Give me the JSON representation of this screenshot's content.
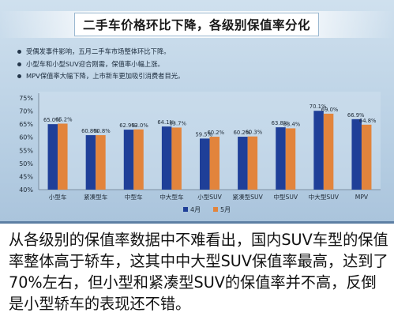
{
  "title": "二手车价格环比下降，各级别保值率分化",
  "bullets": [
    "受偶发事件影响，五月二手车市场整体环比下降。",
    "小型车和小型SUV迎合刚需，保值率小幅上涨。",
    "MPV保值率大幅下降，上市新车更加吸引消费者目光。"
  ],
  "caption": "从各级别的保值率数据中不难看出，国内SUV车型的保值率整体高于轿车，这其中中大型SUV保值率最高，达到了70%左右，但小型和紧凑型SUV的保值率并不高，反倒是小型轿车的表现还不错。",
  "colors": {
    "april": "#1f3f98",
    "may": "#e2843c"
  },
  "chart_data": {
    "type": "bar",
    "categories": [
      "小型车",
      "紧凑型车",
      "中型车",
      "中大型车",
      "小型SUV",
      "紧凑型SUV",
      "中型SUV",
      "中大型SUV",
      "MPV"
    ],
    "series": [
      {
        "name": "4月",
        "values": [
          65.0,
          60.8,
          62.9,
          64.1,
          59.5,
          60.2,
          63.8,
          70.1,
          66.9
        ],
        "labels": [
          "65.0%",
          "60.8%",
          "62.9%",
          "64.1%",
          "59.5%",
          "60.2%",
          "63.8%",
          "70.1%",
          "66.9%"
        ]
      },
      {
        "name": "5月",
        "values": [
          65.2,
          60.8,
          63.0,
          63.7,
          60.2,
          60.3,
          63.4,
          69.0,
          64.8
        ],
        "labels": [
          "65.2%",
          "60.8%",
          "63.0%",
          "63.7%",
          "60.2%",
          "60.3%",
          "63.4%",
          "69.0%",
          "64.8%"
        ]
      }
    ],
    "ylim": [
      40,
      75
    ],
    "yticks": [
      40,
      45,
      50,
      55,
      60,
      65,
      70,
      75
    ],
    "ytick_labels": [
      "40%",
      "45%",
      "50%",
      "55%",
      "60%",
      "65%",
      "70%",
      "75%"
    ],
    "legend": "bottom-center",
    "grid": false
  }
}
